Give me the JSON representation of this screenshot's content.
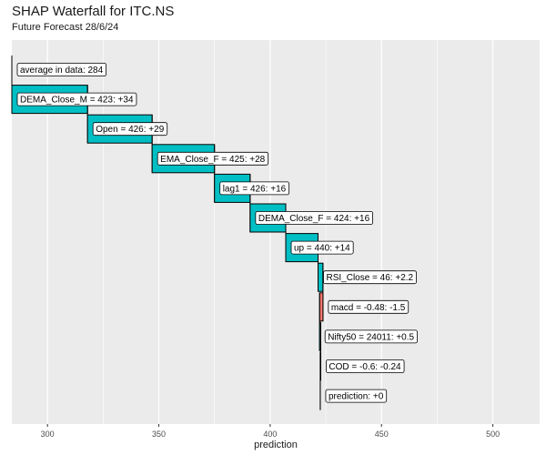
{
  "chart_data": {
    "type": "waterfall",
    "title": "SHAP Waterfall for ITC.NS",
    "subtitle": "Future Forecast 28/6/24",
    "xlabel": "prediction",
    "xlim": [
      284,
      521
    ],
    "x_ticks": [
      300,
      350,
      400,
      450,
      500
    ],
    "grid": true,
    "colors": {
      "positive": "#00bfc4",
      "negative": "#f8766d",
      "panel": "#ebebeb",
      "grid": "#ffffff"
    },
    "steps": [
      {
        "label": "average in data: 284",
        "start": 284,
        "end": 284
      },
      {
        "label": "DEMA_Close_M = 423: +34",
        "start": 284,
        "end": 318
      },
      {
        "label": "Open = 426: +29",
        "start": 318,
        "end": 347
      },
      {
        "label": "EMA_Close_F = 425: +28",
        "start": 347,
        "end": 375
      },
      {
        "label": "lag1 = 426: +16",
        "start": 375,
        "end": 391
      },
      {
        "label": "DEMA_Close_F = 424: +16",
        "start": 391,
        "end": 407
      },
      {
        "label": "up = 440: +14",
        "start": 407,
        "end": 421.5
      },
      {
        "label": "RSI_Close = 46: +2.2",
        "start": 421.5,
        "end": 423.7
      },
      {
        "label": "macd = -0.48: -1.5",
        "start": 423.7,
        "end": 422.2
      },
      {
        "label": "Nifty50 = 24011: +0.5",
        "start": 422.2,
        "end": 422.7
      },
      {
        "label": "COD = -0.6: -0.24",
        "start": 422.7,
        "end": 422.5
      },
      {
        "label": "prediction: +0",
        "start": 422.5,
        "end": 422.5
      }
    ]
  }
}
